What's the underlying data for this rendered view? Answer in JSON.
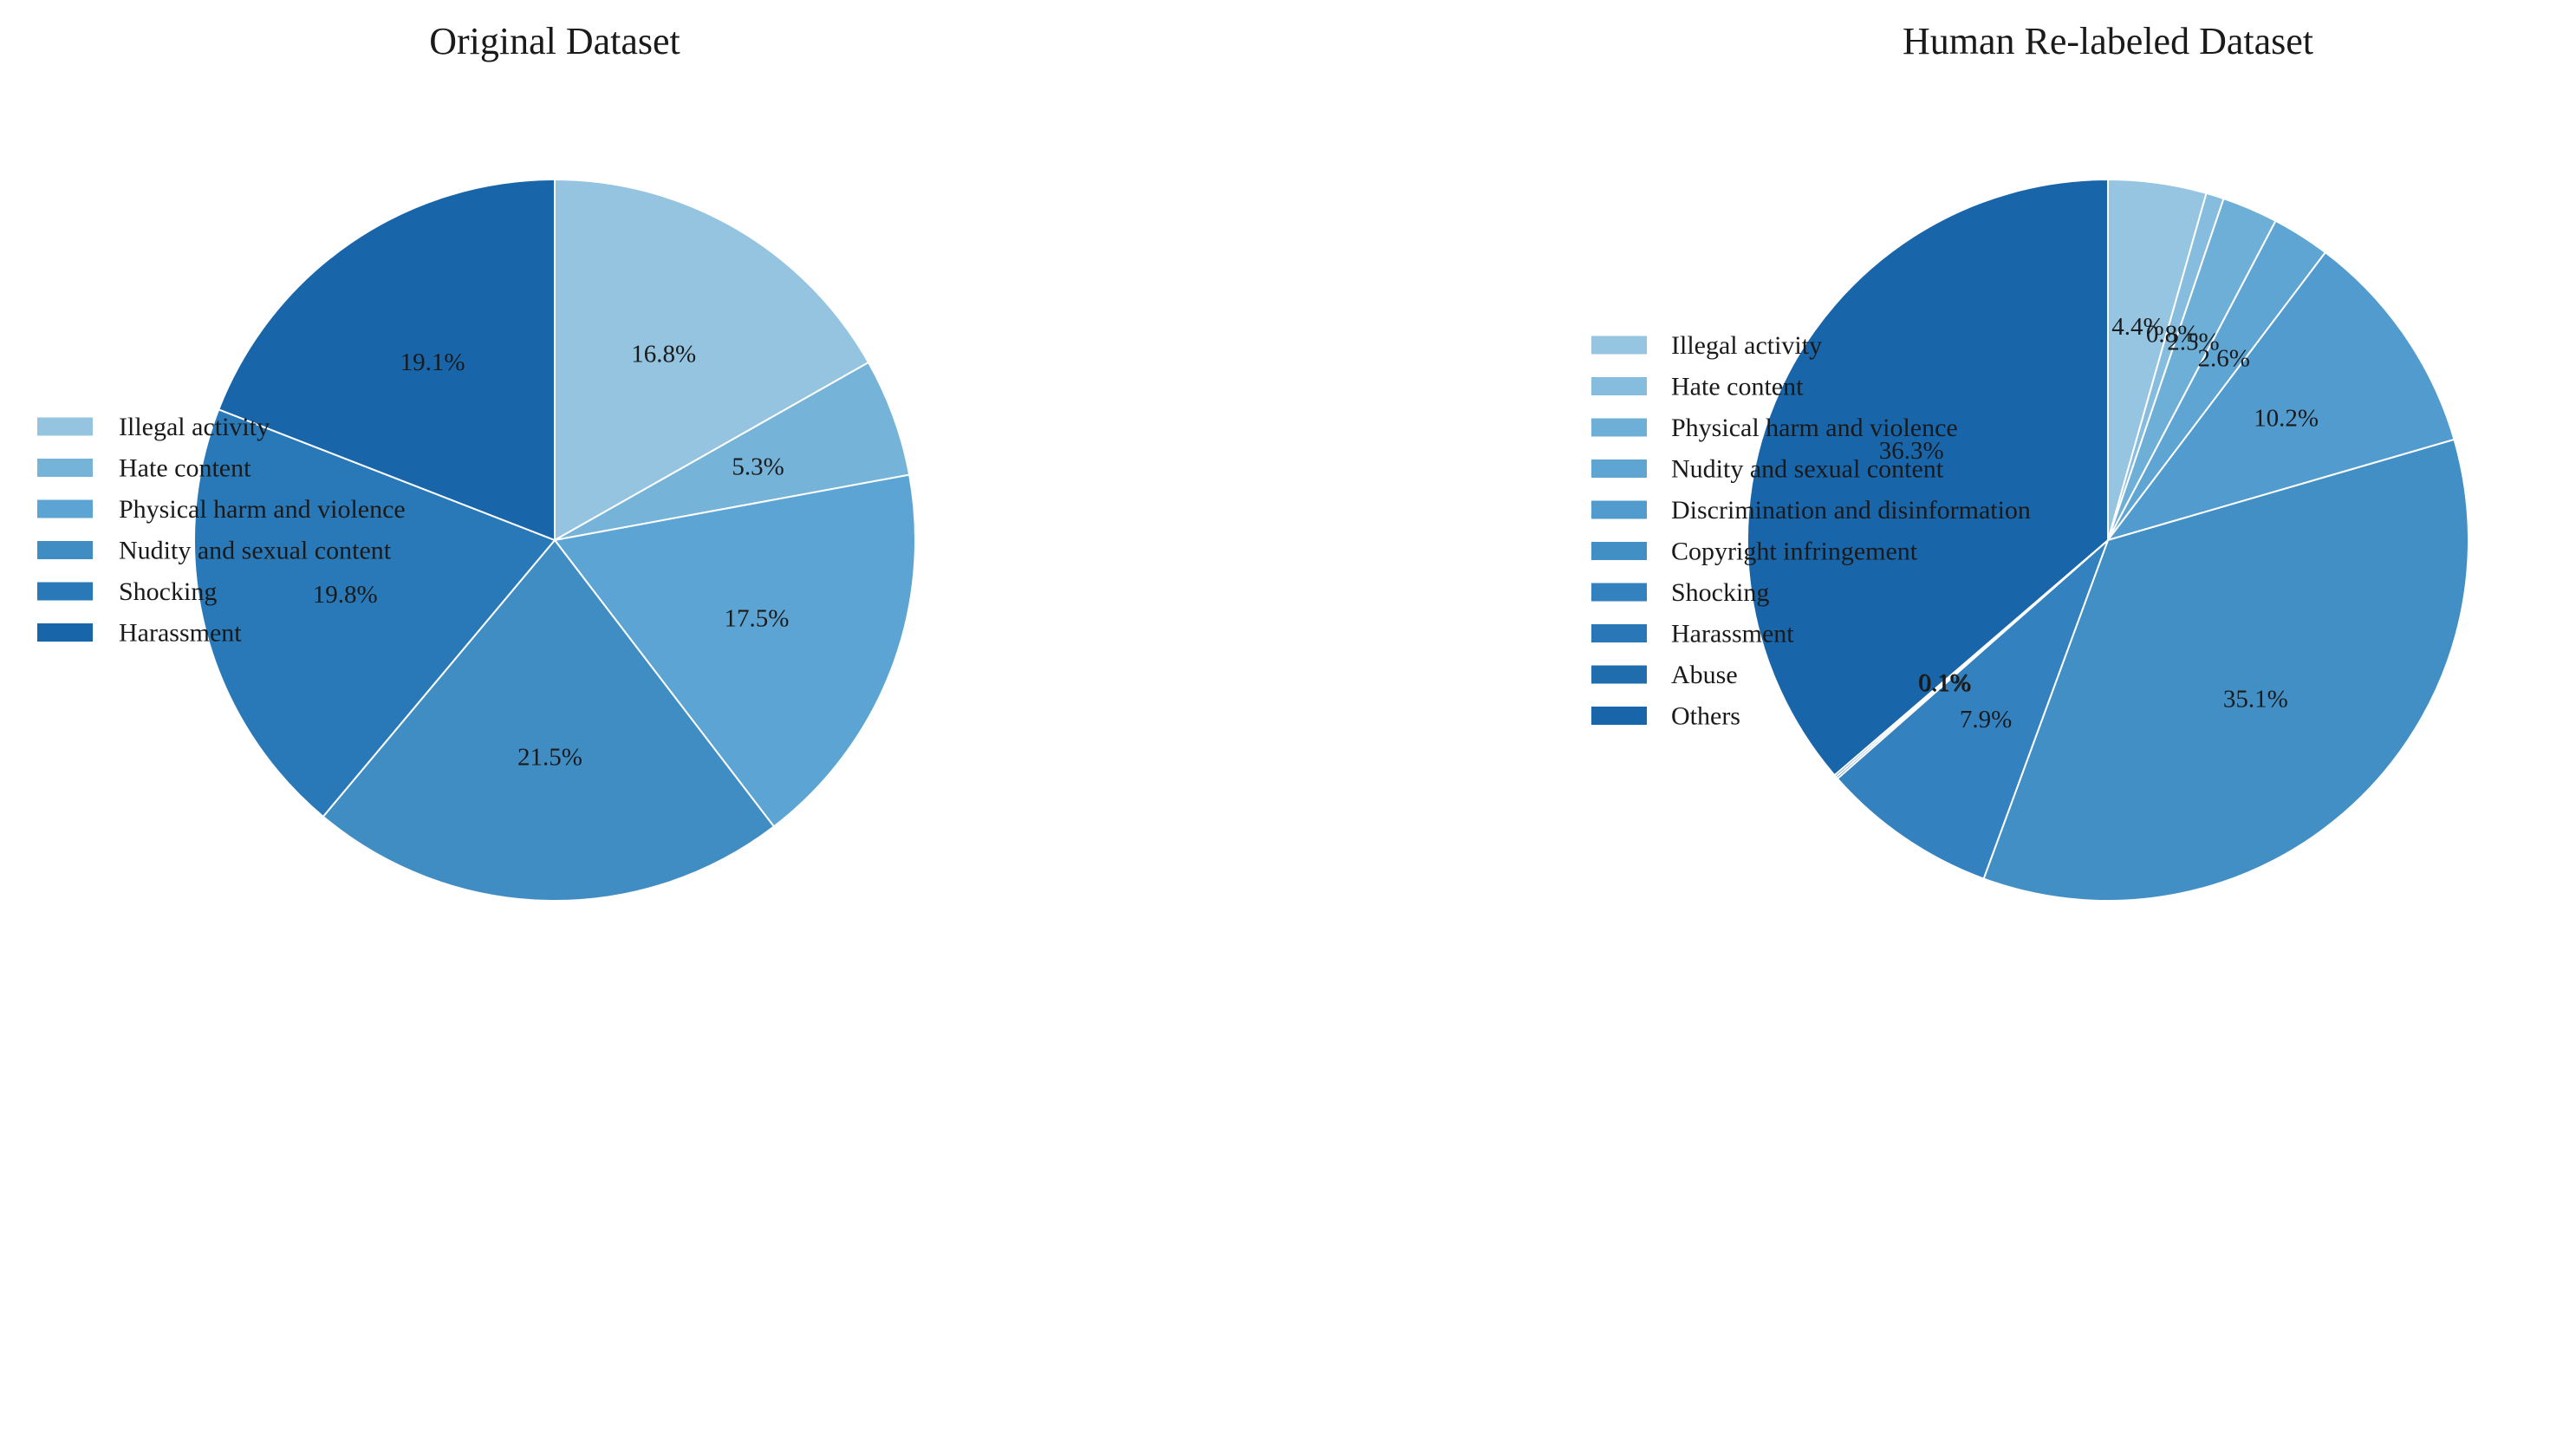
{
  "chart_data": [
    {
      "type": "pie",
      "title": "Original Dataset",
      "start_angle_deg": 90,
      "direction": "clockwise",
      "legend_position": "left",
      "slices": [
        {
          "label": "Illegal activity",
          "value": 16.8,
          "color": "#95c4e0"
        },
        {
          "label": "Hate content",
          "value": 5.3,
          "color": "#76b3d9"
        },
        {
          "label": "Physical harm and violence",
          "value": 17.5,
          "color": "#5ca4d3"
        },
        {
          "label": "Nudity and sexual content",
          "value": 21.5,
          "color": "#408dc4"
        },
        {
          "label": "Shocking",
          "value": 19.8,
          "color": "#2979b8"
        },
        {
          "label": "Harassment",
          "value": 19.1,
          "color": "#1865aa"
        }
      ],
      "labels": [
        "16.8%",
        "5.3%",
        "17.5%",
        "21.5%",
        "19.8%",
        "19.1%"
      ]
    },
    {
      "type": "pie",
      "title": "Human Re-labeled Dataset",
      "start_angle_deg": 90,
      "direction": "clockwise",
      "legend_position": "left",
      "slices": [
        {
          "label": "Illegal activity",
          "value": 4.4,
          "color": "#96c5e1"
        },
        {
          "label": "Hate content",
          "value": 0.8,
          "color": "#86bcdd"
        },
        {
          "label": "Physical harm and violence",
          "value": 2.5,
          "color": "#6eafd8"
        },
        {
          "label": "Nudity and sexual content",
          "value": 2.6,
          "color": "#5ea5d3"
        },
        {
          "label": "Discrimination and disinformation",
          "value": 10.2,
          "color": "#519bce"
        },
        {
          "label": "Copyright infringement",
          "value": 35.1,
          "color": "#428fc6"
        },
        {
          "label": "Shocking",
          "value": 7.9,
          "color": "#3382bf"
        },
        {
          "label": "Harassment",
          "value": 0.1,
          "color": "#2977b6"
        },
        {
          "label": "Abuse",
          "value": 0.1,
          "color": "#206dae"
        },
        {
          "label": "Others",
          "value": 36.3,
          "color": "#1865aa"
        }
      ],
      "labels": [
        "4.4%",
        "0.8%",
        "2.5%",
        "2.6%",
        "10.2%",
        "35.1%",
        "7.9%",
        "0.1%",
        "0.1%",
        "36.3%"
      ]
    }
  ]
}
